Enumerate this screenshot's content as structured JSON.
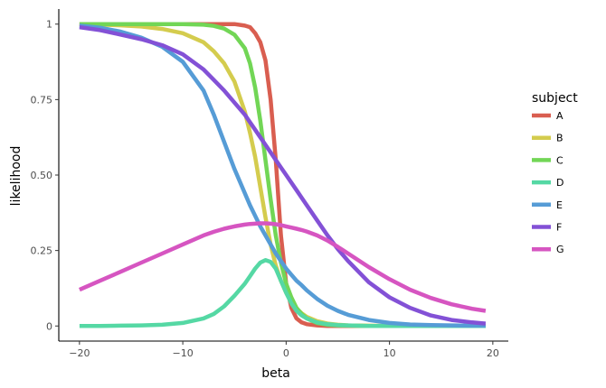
{
  "chart_data": {
    "type": "line",
    "xlabel": "beta",
    "ylabel": "likelihood",
    "xlim": [
      -22,
      21.5
    ],
    "ylim": [
      -0.05,
      1.05
    ],
    "xticks": [
      -20,
      -10,
      0,
      10,
      20
    ],
    "xtick_labels": [
      "−20",
      "−10",
      "0",
      "10",
      "20"
    ],
    "yticks": [
      0,
      0.25,
      0.5,
      0.75,
      1
    ],
    "ytick_labels": [
      "0",
      "0.25",
      "0.50",
      "0.75",
      "1"
    ],
    "grid": false,
    "legend": {
      "title": "subject",
      "placement": "right"
    },
    "x": [
      -20,
      -18,
      -16,
      -14,
      -12,
      -10,
      -8,
      -7,
      -6,
      -5,
      -4,
      -3.5,
      -3,
      -2.5,
      -2,
      -1.5,
      -1,
      -0.5,
      0,
      0.5,
      1,
      1.5,
      2,
      3,
      4,
      5,
      6,
      8,
      10,
      12,
      14,
      16,
      18,
      19.3
    ],
    "series": [
      {
        "name": "A",
        "color": "#d95e50",
        "values": [
          1,
          1,
          1,
          1,
          1,
          1,
          1,
          1,
          1,
          1,
          0.995,
          0.99,
          0.97,
          0.94,
          0.88,
          0.75,
          0.55,
          0.3,
          0.14,
          0.06,
          0.025,
          0.012,
          0.006,
          0.002,
          0,
          0,
          0,
          0,
          0,
          0,
          0,
          0,
          0,
          0
        ]
      },
      {
        "name": "B",
        "color": "#d4cc4e",
        "values": [
          1,
          0.998,
          0.996,
          0.992,
          0.984,
          0.97,
          0.94,
          0.91,
          0.87,
          0.81,
          0.71,
          0.64,
          0.56,
          0.46,
          0.36,
          0.27,
          0.2,
          0.15,
          0.11,
          0.08,
          0.058,
          0.042,
          0.03,
          0.016,
          0.008,
          0.004,
          0.002,
          0.001,
          0,
          0,
          0,
          0,
          0,
          0
        ]
      },
      {
        "name": "C",
        "color": "#72d656",
        "values": [
          1,
          1,
          1,
          1,
          1,
          1,
          0.998,
          0.994,
          0.985,
          0.965,
          0.92,
          0.87,
          0.79,
          0.68,
          0.55,
          0.42,
          0.3,
          0.21,
          0.14,
          0.095,
          0.06,
          0.04,
          0.025,
          0.01,
          0.004,
          0.002,
          0.001,
          0,
          0,
          0,
          0,
          0,
          0,
          0
        ]
      },
      {
        "name": "D",
        "color": "#55d8a4",
        "values": [
          0,
          0,
          0.001,
          0.002,
          0.004,
          0.01,
          0.025,
          0.04,
          0.065,
          0.1,
          0.14,
          0.165,
          0.19,
          0.21,
          0.218,
          0.212,
          0.19,
          0.15,
          0.11,
          0.075,
          0.05,
          0.035,
          0.025,
          0.012,
          0.006,
          0.003,
          0.002,
          0,
          0,
          0,
          0,
          0,
          0,
          0
        ]
      },
      {
        "name": "E",
        "color": "#569cd6",
        "values": [
          0.995,
          0.988,
          0.975,
          0.955,
          0.925,
          0.875,
          0.78,
          0.7,
          0.61,
          0.52,
          0.44,
          0.4,
          0.365,
          0.33,
          0.3,
          0.27,
          0.24,
          0.215,
          0.19,
          0.17,
          0.15,
          0.135,
          0.118,
          0.09,
          0.067,
          0.05,
          0.037,
          0.02,
          0.01,
          0.005,
          0.003,
          0.002,
          0.001,
          0.001
        ]
      },
      {
        "name": "F",
        "color": "#8351d6",
        "values": [
          0.99,
          0.98,
          0.965,
          0.95,
          0.93,
          0.9,
          0.85,
          0.815,
          0.78,
          0.74,
          0.7,
          0.675,
          0.65,
          0.625,
          0.6,
          0.575,
          0.55,
          0.525,
          0.5,
          0.475,
          0.45,
          0.425,
          0.4,
          0.35,
          0.3,
          0.255,
          0.215,
          0.145,
          0.095,
          0.06,
          0.035,
          0.02,
          0.012,
          0.008
        ]
      },
      {
        "name": "G",
        "color": "#d655c1",
        "values": [
          0.12,
          0.15,
          0.18,
          0.21,
          0.24,
          0.27,
          0.3,
          0.312,
          0.322,
          0.33,
          0.336,
          0.338,
          0.339,
          0.34,
          0.34,
          0.339,
          0.337,
          0.334,
          0.33,
          0.326,
          0.322,
          0.318,
          0.313,
          0.3,
          0.283,
          0.262,
          0.24,
          0.195,
          0.155,
          0.12,
          0.093,
          0.072,
          0.057,
          0.05
        ]
      }
    ]
  }
}
